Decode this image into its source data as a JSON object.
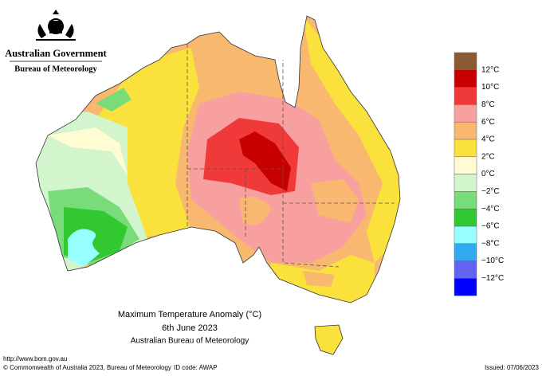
{
  "header": {
    "government": "Australian Government",
    "agency": "Bureau of Meteorology"
  },
  "title": {
    "line1": "Maximum Temperature Anomaly (°C)",
    "line2": "6th June 2023",
    "line3": "Australian Bureau of Meteorology"
  },
  "legend": {
    "colors": [
      "#8c5a32",
      "#c80000",
      "#f03a3a",
      "#f8a0a0",
      "#f8b870",
      "#fae13c",
      "#fffbd2",
      "#d2f5cd",
      "#78dc78",
      "#32c832",
      "#96ffff",
      "#32aaf0",
      "#6464f0",
      "#0000ff"
    ],
    "labels": [
      "12°C",
      "10°C",
      "8°C",
      "6°C",
      "4°C",
      "2°C",
      "0°C",
      "−2°C",
      "−4°C",
      "−6°C",
      "−8°C",
      "−10°C",
      "−12°C"
    ]
  },
  "footer": {
    "url": "http://www.bom.gov.au",
    "copyright": "© Commonwealth of Australia 2023, Bureau of Meteorology",
    "id_code": "ID code: AWAP",
    "issued": "Issued: 07/06/2023"
  }
}
